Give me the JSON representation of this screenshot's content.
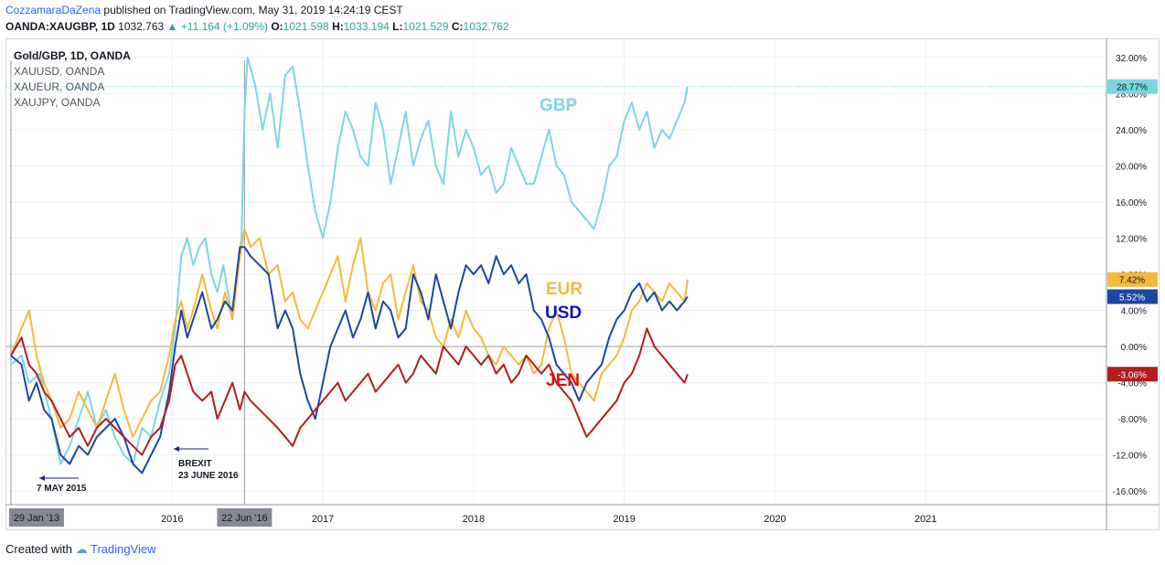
{
  "header": {
    "author": "CozzamaraDaZena",
    "published_text": "published on TradingView.com, May 31, 2019 14:24:19 CEST",
    "symbol": "OANDA:XAUGBP, 1D",
    "last": "1032.763",
    "change": "+11.164 (+1.09%)",
    "open_label": "O:",
    "open": "1021.598",
    "high_label": "H:",
    "high": "1033.194",
    "low_label": "L:",
    "low": "1021.529",
    "close_label": "C:",
    "close": "1032.762"
  },
  "footer": {
    "created_with": "Created with",
    "brand": "TradingView"
  },
  "chart_data": {
    "type": "line",
    "legend": [
      "Gold/GBP, 1D, OANDA",
      "XAUUSD, OANDA",
      "XAUEUR, OANDA",
      "XAUJPY, OANDA"
    ],
    "y_unit": "%",
    "ylim": [
      -17.5,
      34
    ],
    "y_ticks": [
      "32.00%",
      "28.00%",
      "24.00%",
      "20.00%",
      "16.00%",
      "12.00%",
      "8.00%",
      "4.00%",
      "0.00%",
      "-4.00%",
      "-8.00%",
      "-12.00%",
      "-16.00%"
    ],
    "x_ticks": [
      {
        "label": "2016",
        "t": 2016.0
      },
      {
        "label": "2017",
        "t": 2017.0
      },
      {
        "label": "2018",
        "t": 2018.0
      },
      {
        "label": "2019",
        "t": 2019.0
      },
      {
        "label": "2020",
        "t": 2020.0
      },
      {
        "label": "2021",
        "t": 2021.0
      }
    ],
    "x_range": [
      2014.9,
      2022.2
    ],
    "marker_dates": [
      {
        "label": "29 Jan '13",
        "t": 2014.93
      },
      {
        "label": "22 Jun '16",
        "t": 2016.48
      }
    ],
    "grid": true,
    "series": [
      {
        "name": "GBP",
        "color": "#7ad6e3",
        "last_label": "28.77%",
        "t": [
          2014.93,
          2015.0,
          2015.05,
          2015.12,
          2015.2,
          2015.26,
          2015.32,
          2015.38,
          2015.44,
          2015.5,
          2015.56,
          2015.62,
          2015.68,
          2015.74,
          2015.8,
          2015.86,
          2015.92,
          2015.98,
          2016.02,
          2016.06,
          2016.1,
          2016.14,
          2016.18,
          2016.22,
          2016.26,
          2016.3,
          2016.34,
          2016.4,
          2016.46,
          2016.48,
          2016.5,
          2016.55,
          2016.6,
          2016.65,
          2016.7,
          2016.75,
          2016.8,
          2016.85,
          2016.9,
          2016.95,
          2017.0,
          2017.05,
          2017.1,
          2017.15,
          2017.2,
          2017.25,
          2017.3,
          2017.35,
          2017.4,
          2017.45,
          2017.5,
          2017.55,
          2017.6,
          2017.65,
          2017.7,
          2017.75,
          2017.8,
          2017.85,
          2017.9,
          2017.95,
          2018.0,
          2018.05,
          2018.1,
          2018.15,
          2018.2,
          2018.25,
          2018.3,
          2018.35,
          2018.4,
          2018.45,
          2018.5,
          2018.55,
          2018.6,
          2018.65,
          2018.7,
          2018.75,
          2018.8,
          2018.85,
          2018.9,
          2018.95,
          2019.0,
          2019.05,
          2019.1,
          2019.15,
          2019.2,
          2019.25,
          2019.3,
          2019.35,
          2019.4,
          2019.42
        ],
        "v": [
          -2,
          -1,
          -4,
          -3,
          -8,
          -13,
          -11,
          -8,
          -5,
          -9,
          -7,
          -10,
          -12,
          -13,
          -9,
          -10,
          -6,
          -3,
          2,
          10,
          12,
          9,
          11,
          12,
          8,
          6,
          9,
          3,
          12,
          26,
          32,
          29,
          24,
          28,
          22,
          30,
          31,
          26,
          20,
          15,
          12,
          16,
          22,
          26,
          24,
          21,
          20,
          27,
          24,
          18,
          22,
          26,
          20,
          23,
          25,
          20,
          18,
          26,
          21,
          24,
          22,
          19,
          20,
          17,
          18,
          22,
          20,
          18,
          18,
          21,
          24,
          20,
          19,
          16,
          15,
          14,
          13,
          16,
          20,
          21,
          25,
          27,
          24,
          26,
          22,
          24,
          23,
          25,
          27,
          28.77
        ]
      },
      {
        "name": "EUR",
        "color": "#f2b93b",
        "last_label": "7.42%",
        "t": [
          2014.93,
          2015.0,
          2015.05,
          2015.1,
          2015.15,
          2015.2,
          2015.26,
          2015.32,
          2015.38,
          2015.44,
          2015.5,
          2015.56,
          2015.62,
          2015.68,
          2015.74,
          2015.8,
          2015.86,
          2015.92,
          2015.98,
          2016.02,
          2016.06,
          2016.1,
          2016.14,
          2016.2,
          2016.26,
          2016.3,
          2016.35,
          2016.4,
          2016.45,
          2016.48,
          2016.52,
          2016.58,
          2016.64,
          2016.7,
          2016.75,
          2016.8,
          2016.85,
          2016.9,
          2016.95,
          2017.0,
          2017.05,
          2017.1,
          2017.15,
          2017.2,
          2017.25,
          2017.3,
          2017.35,
          2017.4,
          2017.45,
          2017.5,
          2017.55,
          2017.6,
          2017.65,
          2017.7,
          2017.75,
          2017.8,
          2017.85,
          2017.9,
          2017.95,
          2018.0,
          2018.05,
          2018.1,
          2018.15,
          2018.2,
          2018.25,
          2018.3,
          2018.35,
          2018.4,
          2018.45,
          2018.5,
          2018.55,
          2018.6,
          2018.65,
          2018.7,
          2018.75,
          2018.8,
          2018.85,
          2018.9,
          2018.95,
          2019.0,
          2019.05,
          2019.1,
          2019.15,
          2019.2,
          2019.25,
          2019.3,
          2019.35,
          2019.4,
          2019.42
        ],
        "v": [
          -1,
          2,
          4,
          -1,
          -4,
          -6,
          -9,
          -8,
          -5,
          -7,
          -9,
          -6,
          -3,
          -7,
          -10,
          -8,
          -6,
          -5,
          -1,
          3,
          5,
          2,
          4,
          8,
          4,
          2,
          6,
          3,
          10,
          13,
          11,
          12,
          8,
          9,
          5,
          6,
          3,
          2,
          4,
          6,
          8,
          10,
          5,
          9,
          12,
          6,
          4,
          7,
          8,
          3,
          6,
          9,
          5,
          4,
          1,
          0,
          3,
          1,
          4,
          2,
          1,
          -1,
          -2,
          0,
          -1,
          -2,
          -1,
          -3,
          -2,
          2,
          4,
          1,
          -3,
          -4,
          -5,
          -6,
          -3,
          -2,
          -1,
          1,
          4,
          5,
          7,
          6,
          5,
          7,
          6,
          5,
          7.42
        ]
      },
      {
        "name": "USD",
        "color": "#1a47a0",
        "last_label": "5.52%",
        "t": [
          2014.93,
          2015.0,
          2015.05,
          2015.1,
          2015.15,
          2015.2,
          2015.26,
          2015.32,
          2015.38,
          2015.44,
          2015.5,
          2015.56,
          2015.62,
          2015.68,
          2015.74,
          2015.8,
          2015.86,
          2015.92,
          2015.98,
          2016.02,
          2016.06,
          2016.1,
          2016.14,
          2016.2,
          2016.26,
          2016.3,
          2016.35,
          2016.4,
          2016.45,
          2016.48,
          2016.52,
          2016.58,
          2016.64,
          2016.7,
          2016.75,
          2016.8,
          2016.85,
          2016.9,
          2016.95,
          2017.0,
          2017.05,
          2017.1,
          2017.15,
          2017.2,
          2017.25,
          2017.3,
          2017.35,
          2017.4,
          2017.45,
          2017.5,
          2017.55,
          2017.6,
          2017.65,
          2017.7,
          2017.75,
          2017.8,
          2017.85,
          2017.9,
          2017.95,
          2018.0,
          2018.05,
          2018.1,
          2018.15,
          2018.2,
          2018.25,
          2018.3,
          2018.35,
          2018.4,
          2018.45,
          2018.5,
          2018.55,
          2018.6,
          2018.65,
          2018.7,
          2018.75,
          2018.8,
          2018.85,
          2018.9,
          2018.95,
          2019.0,
          2019.05,
          2019.1,
          2019.15,
          2019.2,
          2019.25,
          2019.3,
          2019.35,
          2019.4,
          2019.42
        ],
        "v": [
          -1,
          -2,
          -6,
          -4,
          -7,
          -8,
          -12,
          -13,
          -11,
          -12,
          -10,
          -9,
          -8,
          -10,
          -13,
          -14,
          -12,
          -10,
          -5,
          0,
          4,
          1,
          3,
          6,
          2,
          3,
          5,
          4,
          11,
          11,
          10,
          9,
          8,
          2,
          4,
          2,
          -3,
          -6,
          -8,
          -4,
          0,
          2,
          4,
          1,
          3,
          6,
          2,
          5,
          4,
          1,
          2,
          8,
          6,
          3,
          8,
          5,
          2,
          6,
          9,
          8,
          9,
          7,
          10,
          8,
          9,
          7,
          8,
          4,
          3,
          1,
          -2,
          -3,
          -4,
          -6,
          -4,
          -3,
          -2,
          1,
          3,
          4,
          6,
          7,
          5,
          6,
          4,
          5,
          4,
          5,
          5.52
        ]
      },
      {
        "name": "JEN",
        "color": "#b31d1d",
        "last_label": "-3.06%",
        "t": [
          2014.93,
          2015.0,
          2015.05,
          2015.1,
          2015.15,
          2015.2,
          2015.26,
          2015.32,
          2015.38,
          2015.44,
          2015.5,
          2015.56,
          2015.62,
          2015.68,
          2015.74,
          2015.8,
          2015.86,
          2015.92,
          2015.98,
          2016.02,
          2016.06,
          2016.1,
          2016.14,
          2016.2,
          2016.26,
          2016.3,
          2016.35,
          2016.4,
          2016.45,
          2016.48,
          2016.52,
          2016.58,
          2016.64,
          2016.7,
          2016.75,
          2016.8,
          2016.85,
          2016.9,
          2016.95,
          2017.0,
          2017.05,
          2017.1,
          2017.15,
          2017.2,
          2017.25,
          2017.3,
          2017.35,
          2017.4,
          2017.45,
          2017.5,
          2017.55,
          2017.6,
          2017.65,
          2017.7,
          2017.75,
          2017.8,
          2017.85,
          2017.9,
          2017.95,
          2018.0,
          2018.05,
          2018.1,
          2018.15,
          2018.2,
          2018.25,
          2018.3,
          2018.35,
          2018.4,
          2018.45,
          2018.5,
          2018.55,
          2018.6,
          2018.65,
          2018.7,
          2018.75,
          2018.8,
          2018.85,
          2018.9,
          2018.95,
          2019.0,
          2019.05,
          2019.1,
          2019.15,
          2019.2,
          2019.25,
          2019.3,
          2019.35,
          2019.4,
          2019.42
        ],
        "v": [
          -1,
          1,
          -2,
          -3,
          -5,
          -6,
          -8,
          -10,
          -9,
          -11,
          -9,
          -8,
          -9,
          -10,
          -11,
          -12,
          -10,
          -9,
          -6,
          -2,
          -1,
          -3,
          -5,
          -6,
          -5,
          -8,
          -6,
          -4,
          -7,
          -5,
          -6,
          -7,
          -8,
          -9,
          -10,
          -11,
          -9,
          -8,
          -7,
          -6,
          -5,
          -4,
          -6,
          -5,
          -4,
          -3,
          -5,
          -4,
          -3,
          -2,
          -4,
          -3,
          -1,
          -2,
          -3,
          0,
          -1,
          -2,
          0,
          -1,
          -2,
          -1,
          -3,
          -2,
          -4,
          -3,
          -1,
          -2,
          -3,
          -2,
          -4,
          -5,
          -6,
          -8,
          -10,
          -9,
          -8,
          -7,
          -6,
          -4,
          -3,
          -1,
          2,
          0,
          -1,
          -2,
          -3,
          -4,
          -3.06
        ]
      }
    ]
  },
  "annotations": {
    "brexit_title": "BREXIT",
    "brexit_date": "23 JUNE 2016",
    "may_date": "7 MAY 2015"
  }
}
